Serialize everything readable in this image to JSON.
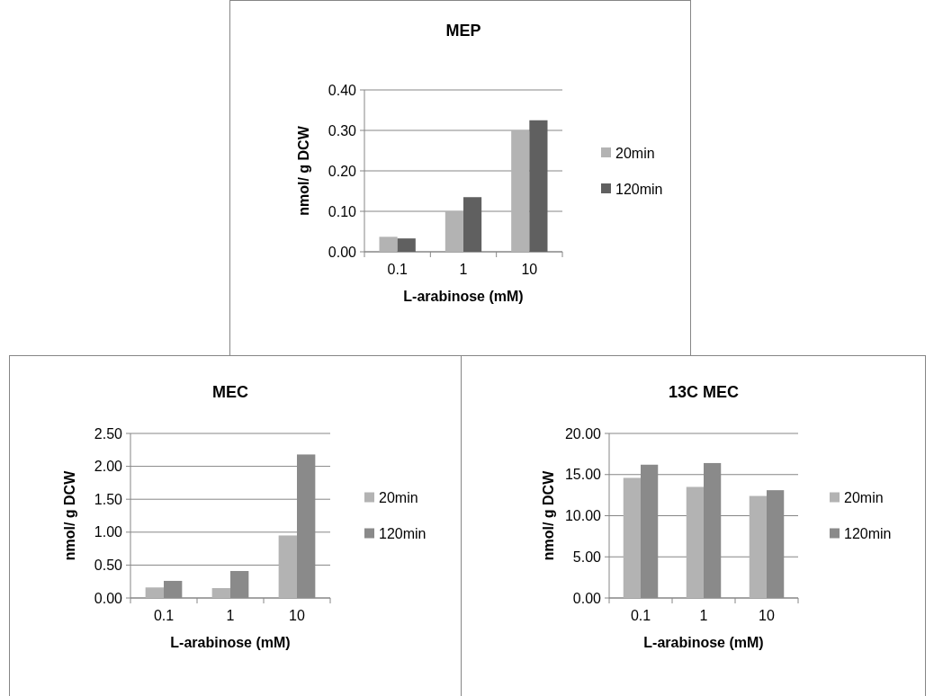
{
  "chart_data": [
    {
      "type": "bar",
      "title": "MEP",
      "xlabel": "L-arabinose (mM)",
      "ylabel": "nmol/ g DCW",
      "categories": [
        "0.1",
        "1",
        "10"
      ],
      "series": [
        {
          "name": "20min",
          "color": "#b3b3b3",
          "values": [
            0.037,
            0.1,
            0.3
          ]
        },
        {
          "name": "120min",
          "color": "#606060",
          "values": [
            0.033,
            0.135,
            0.325
          ]
        }
      ],
      "ylim": [
        0,
        0.4
      ],
      "yticks": [
        {
          "value": 0,
          "label": "0.00"
        },
        {
          "value": 0.1,
          "label": "0.10"
        },
        {
          "value": 0.2,
          "label": "0.20"
        },
        {
          "value": 0.3,
          "label": "0.30"
        },
        {
          "value": 0.4,
          "label": "0.40"
        }
      ],
      "grid": "y",
      "legend": "right"
    },
    {
      "type": "bar",
      "title": "MEC",
      "xlabel": "L-arabinose (mM)",
      "ylabel": "nmol/ g DCW",
      "categories": [
        "0.1",
        "1",
        "10"
      ],
      "series": [
        {
          "name": "20min",
          "color": "#b3b3b3",
          "values": [
            0.16,
            0.15,
            0.95
          ]
        },
        {
          "name": "120min",
          "color": "#8a8a8a",
          "values": [
            0.26,
            0.41,
            2.18
          ]
        }
      ],
      "ylim": [
        0,
        2.5
      ],
      "yticks": [
        {
          "value": 0,
          "label": "0.00"
        },
        {
          "value": 0.5,
          "label": "0.50"
        },
        {
          "value": 1,
          "label": "1.00"
        },
        {
          "value": 1.5,
          "label": "1.50"
        },
        {
          "value": 2,
          "label": "2.00"
        },
        {
          "value": 2.5,
          "label": "2.50"
        }
      ],
      "grid": "y",
      "legend": "right"
    },
    {
      "type": "bar",
      "title": "13C MEC",
      "xlabel": "L-arabinose (mM)",
      "ylabel": "nmol/ g DCW",
      "categories": [
        "0.1",
        "1",
        "10"
      ],
      "series": [
        {
          "name": "20min",
          "color": "#b3b3b3",
          "values": [
            14.6,
            13.5,
            12.4
          ]
        },
        {
          "name": "120min",
          "color": "#8a8a8a",
          "values": [
            16.2,
            16.4,
            13.1
          ]
        }
      ],
      "ylim": [
        0,
        20
      ],
      "yticks": [
        {
          "value": 0,
          "label": "0.00"
        },
        {
          "value": 5,
          "label": "5.00"
        },
        {
          "value": 10,
          "label": "10.00"
        },
        {
          "value": 15,
          "label": "15.00"
        },
        {
          "value": 20,
          "label": "20.00"
        }
      ],
      "grid": "y",
      "legend": "right"
    }
  ]
}
